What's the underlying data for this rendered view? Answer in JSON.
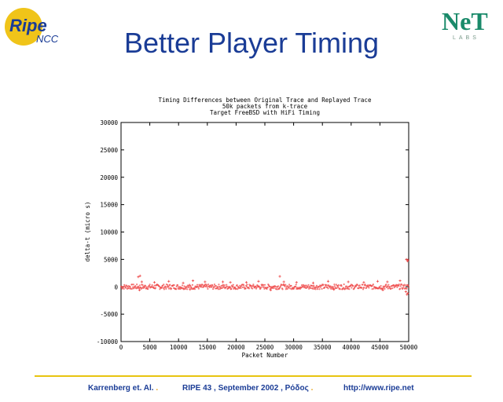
{
  "slide": {
    "title": "Better Player Timing",
    "ripe_logo_text": "Ripe",
    "ripe_logo_sub": "NCC",
    "net_logo_text": "NeT",
    "net_logo_sub": "LABS"
  },
  "footer": {
    "left": "Karrenberg et. Al.",
    "middle": "RIPE 43 ,  September 2002 , Ρόδος",
    "right": "http://www.ripe.net",
    "separator": "."
  },
  "colors": {
    "title": "#1a3c96",
    "accent": "#e8c410",
    "points": "#ee4444"
  },
  "chart_data": {
    "type": "scatter",
    "title": "Timing Differences between Original Trace and Replayed Trace",
    "subtitle_lines": [
      "50k packets from k-trace",
      "Target FreeBSD with HiFi Timing"
    ],
    "xlabel": "Packet Number",
    "ylabel": "delta-t (micro s)",
    "xlim": [
      0,
      50000
    ],
    "ylim": [
      -10000,
      30000
    ],
    "xticks": [
      0,
      5000,
      10000,
      15000,
      20000,
      25000,
      30000,
      35000,
      40000,
      45000,
      50000
    ],
    "yticks": [
      -10000,
      -5000,
      0,
      5000,
      10000,
      15000,
      20000,
      25000,
      30000
    ],
    "series": [
      {
        "values_description_free": true,
        "points": [
          [
            3000,
            1800
          ],
          [
            3300,
            2000
          ],
          [
            3600,
            900
          ],
          [
            5800,
            800
          ],
          [
            8300,
            1000
          ],
          [
            10800,
            700
          ],
          [
            12500,
            1100
          ],
          [
            14600,
            900
          ],
          [
            17700,
            900
          ],
          [
            19000,
            800
          ],
          [
            21800,
            800
          ],
          [
            23900,
            1000
          ],
          [
            27600,
            1900
          ],
          [
            28300,
            900
          ],
          [
            30500,
            800
          ],
          [
            33400,
            700
          ],
          [
            36000,
            1000
          ],
          [
            39500,
            900
          ],
          [
            42200,
            800
          ],
          [
            44600,
            1000
          ],
          [
            46300,
            900
          ],
          [
            48500,
            1100
          ],
          [
            49600,
            5000
          ],
          [
            49800,
            4700
          ],
          [
            49900,
            4900
          ],
          [
            49700,
            -1400
          ],
          [
            49850,
            -1200
          ],
          [
            3200,
            -600
          ],
          [
            12000,
            -500
          ],
          [
            26000,
            -600
          ],
          [
            37000,
            -500
          ],
          [
            45500,
            -600
          ],
          [
            49500,
            -900
          ]
        ]
      }
    ]
  }
}
